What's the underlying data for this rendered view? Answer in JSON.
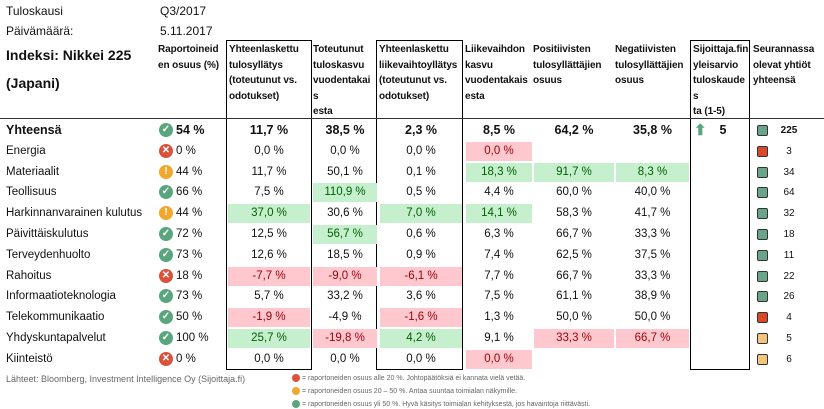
{
  "meta": {
    "period_label": "Tuloskausi",
    "period": "Q3/2017",
    "date_label": "Päivämäärä:",
    "date": "5.11.2017"
  },
  "title_line1": "Indeksi: Nikkei 225",
  "title_line2": "(Japani)",
  "headers": [
    [
      "Raportoineid",
      "en osuus (%)"
    ],
    [
      "Yhteenlaskettu",
      "tulosyllätys",
      "(toteutunut vs.",
      "odotukset)"
    ],
    [
      "Toteutunut",
      "tuloskasvu",
      "vuodentakais",
      "esta"
    ],
    [
      "Yhteenlaskettu",
      "liikevaihtoyllätys",
      "(toteutunut vs.",
      "odotukset)"
    ],
    [
      "Liikevaihdon",
      "kasvu",
      "vuodentakais",
      "esta"
    ],
    [
      "Positiivisten",
      "tulosyllättäjien",
      "osuus"
    ],
    [
      "Negatiivisten",
      "tulosyllättäjien",
      "osuus"
    ],
    [
      "Sijoittaja.fin",
      "yleisarvio",
      "tuloskaudes",
      "ta (1-5)"
    ],
    [
      "Seurannassa",
      "olevat yhtiöt",
      "yhteensä"
    ]
  ],
  "colors": {
    "green_status": "#5aa57e",
    "yellow_status": "#f0a830",
    "red_status": "#d9533b",
    "square_green": "#6aa58a",
    "square_red": "#d9482b",
    "square_orange": "#f2c57c",
    "positive_bg": "#c6efce",
    "negative_bg": "#ffc7ce"
  },
  "rows": [
    {
      "name": "Yhteensä",
      "status": "green",
      "share": "54 %",
      "v": [
        "11,7 %",
        "38,5 %",
        "2,3 %",
        "8,5 %",
        "64,2 %",
        "35,8 %"
      ],
      "h": [
        "",
        "",
        "",
        "",
        "",
        ""
      ],
      "rating": "5",
      "rating_icon": "arrow-up-icon",
      "count": "225",
      "sq": "green",
      "total": true
    },
    {
      "name": "Energia",
      "status": "red",
      "share": "0 %",
      "v": [
        "0,0 %",
        "0,0 %",
        "0,0 %",
        "0,0 %",
        "",
        ""
      ],
      "h": [
        "",
        "",
        "",
        "r",
        "",
        ""
      ],
      "count": "3",
      "sq": "red"
    },
    {
      "name": "Materiaalit",
      "status": "yellow",
      "share": "44 %",
      "v": [
        "11,7 %",
        "50,1 %",
        "0,1 %",
        "18,3 %",
        "91,7 %",
        "8,3 %"
      ],
      "h": [
        "",
        "",
        "",
        "g",
        "g",
        "g"
      ],
      "count": "34",
      "sq": "green"
    },
    {
      "name": "Teollisuus",
      "status": "green",
      "share": "66 %",
      "v": [
        "7,5 %",
        "110,9 %",
        "0,5 %",
        "4,4 %",
        "60,0 %",
        "40,0 %"
      ],
      "h": [
        "",
        "g",
        "",
        "",
        "",
        ""
      ],
      "count": "64",
      "sq": "green"
    },
    {
      "name": "Harkinnanvarainen kulutus",
      "status": "yellow",
      "share": "44 %",
      "v": [
        "37,0 %",
        "30,6 %",
        "7,0 %",
        "14,1 %",
        "58,3 %",
        "41,7 %"
      ],
      "h": [
        "g",
        "",
        "g",
        "g",
        "",
        ""
      ],
      "count": "32",
      "sq": "green"
    },
    {
      "name": "Päivittäiskulutus",
      "status": "green",
      "share": "72 %",
      "v": [
        "12,5 %",
        "56,7 %",
        "0,6 %",
        "6,3 %",
        "66,7 %",
        "33,3 %"
      ],
      "h": [
        "",
        "g",
        "",
        "",
        "",
        ""
      ],
      "count": "18",
      "sq": "green"
    },
    {
      "name": "Terveydenhuolto",
      "status": "green",
      "share": "73 %",
      "v": [
        "12,6 %",
        "18,5 %",
        "0,9 %",
        "7,4 %",
        "62,5 %",
        "37,5 %"
      ],
      "h": [
        "",
        "",
        "",
        "",
        "",
        ""
      ],
      "count": "11",
      "sq": "green"
    },
    {
      "name": "Rahoitus",
      "status": "red",
      "share": "18 %",
      "v": [
        "-7,7 %",
        "-9,0 %",
        "-6,1 %",
        "7,7 %",
        "66,7 %",
        "33,3 %"
      ],
      "h": [
        "r",
        "r",
        "r",
        "",
        "",
        ""
      ],
      "count": "22",
      "sq": "green"
    },
    {
      "name": "Informaatioteknologia",
      "status": "green",
      "share": "73 %",
      "v": [
        "5,7 %",
        "33,2 %",
        "3,6 %",
        "7,5 %",
        "61,1 %",
        "38,9 %"
      ],
      "h": [
        "",
        "",
        "",
        "",
        "",
        ""
      ],
      "count": "26",
      "sq": "green"
    },
    {
      "name": "Telekommunikaatio",
      "status": "green",
      "share": "50 %",
      "v": [
        "-1,9 %",
        "-4,9 %",
        "-1,6 %",
        "1,3 %",
        "50,0 %",
        "50,0 %"
      ],
      "h": [
        "r",
        "",
        "r",
        "",
        "",
        ""
      ],
      "count": "4",
      "sq": "red"
    },
    {
      "name": "Yhdyskuntapalvelut",
      "status": "green",
      "share": "100 %",
      "v": [
        "25,7 %",
        "-19,8 %",
        "4,2 %",
        "9,1 %",
        "33,3 %",
        "66,7 %"
      ],
      "h": [
        "g",
        "r",
        "g",
        "",
        "r",
        "r"
      ],
      "count": "5",
      "sq": "orange"
    },
    {
      "name": "Kiinteistö",
      "status": "red",
      "share": "0 %",
      "v": [
        "0,0 %",
        "0,0 %",
        "0,0 %",
        "0,0 %",
        "",
        ""
      ],
      "h": [
        "",
        "",
        "",
        "r",
        "",
        ""
      ],
      "count": "6",
      "sq": "orange"
    }
  ],
  "footer": {
    "sources": "Lähteet: Bloomberg, Investment Intelligence Oy (Sijoittaja.fi)",
    "legend": [
      "= raportoneiden osuus alle 20 %. Johtopäätöksiä ei kannata vielä vetää.",
      "= raportoneiden osuus 20 – 50 %. Antaa suuntaa toimialan näkymille.",
      "= raportoneiden osuus yli 50 %. Hyvä käsitys toimialan kehityksestä, jos havaintoja riittävästi."
    ]
  }
}
